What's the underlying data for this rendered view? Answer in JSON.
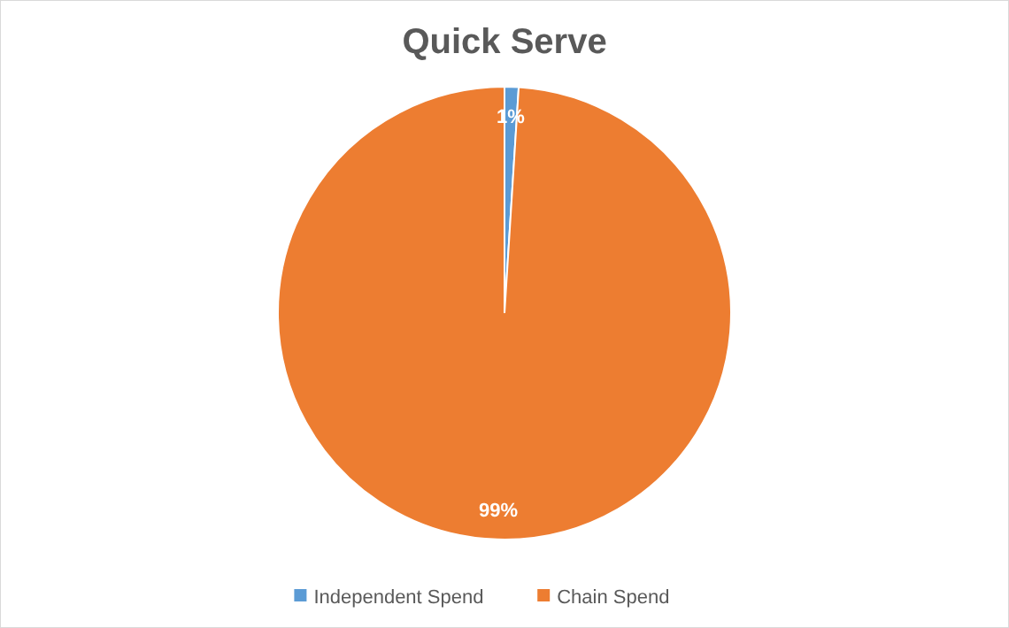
{
  "chart_data": {
    "type": "pie",
    "title": "Quick Serve",
    "categories": [
      "Independent Spend",
      "Chain Spend"
    ],
    "values": [
      1,
      99
    ],
    "colors": [
      "#5b9bd5",
      "#ed7d31"
    ],
    "value_labels": [
      "1%",
      "99%"
    ],
    "legend": "bottom"
  }
}
